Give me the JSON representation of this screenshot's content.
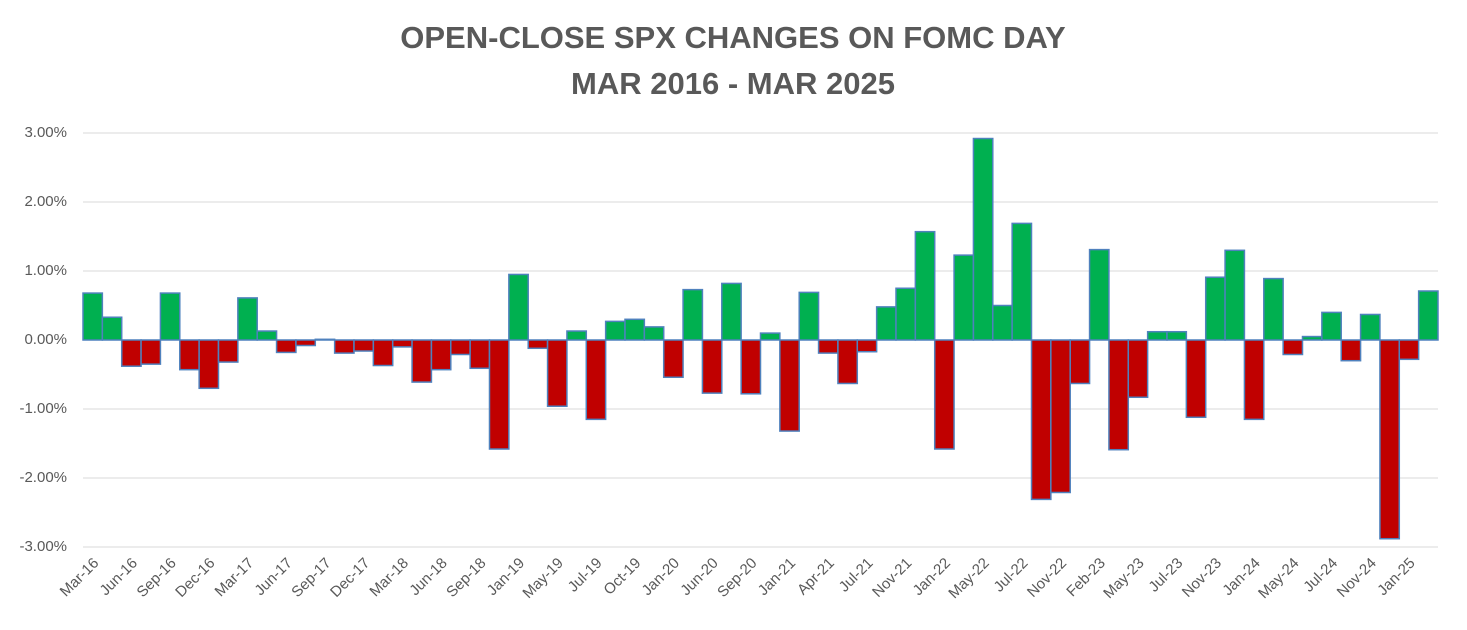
{
  "chart_data": {
    "type": "bar",
    "title": [
      "OPEN-CLOSE SPX CHANGES ON FOMC DAY",
      "MAR 2016 - MAR 2025"
    ],
    "categories": [
      "Mar-16",
      null,
      "Jun-16",
      null,
      "Sep-16",
      null,
      "Dec-16",
      null,
      "Mar-17",
      null,
      "Jun-17",
      null,
      "Sep-17",
      null,
      "Dec-17",
      null,
      "Mar-18",
      null,
      "Jun-18",
      null,
      "Sep-18",
      null,
      "Jan-19",
      null,
      "May-19",
      null,
      "Jul-19",
      null,
      "Oct-19",
      null,
      "Jan-20",
      null,
      "Jun-20",
      null,
      "Sep-20",
      null,
      "Jan-21",
      null,
      "Apr-21",
      null,
      "Jul-21",
      null,
      "Nov-21",
      null,
      "Jan-22",
      null,
      "May-22",
      null,
      "Jul-22",
      null,
      "Nov-22",
      null,
      "Feb-23",
      null,
      "May-23",
      null,
      "Jul-23",
      null,
      "Nov-23",
      null,
      "Jan-24",
      null,
      "May-24",
      null,
      "Jul-24",
      null,
      "Nov-24",
      null,
      "Jan-25",
      null
    ],
    "values": [
      0.68,
      0.33,
      -0.38,
      -0.35,
      0.68,
      -0.43,
      -0.7,
      -0.32,
      0.61,
      0.13,
      -0.18,
      -0.08,
      0.01,
      -0.19,
      -0.16,
      -0.37,
      -0.1,
      -0.61,
      -0.43,
      -0.21,
      -0.41,
      -1.58,
      0.95,
      -0.12,
      -0.96,
      0.13,
      -1.15,
      0.27,
      0.3,
      0.19,
      -0.54,
      0.73,
      -0.77,
      0.82,
      -0.78,
      0.1,
      -1.32,
      0.69,
      -0.19,
      -0.63,
      -0.17,
      0.48,
      0.75,
      1.57,
      -1.58,
      1.23,
      2.92,
      0.5,
      1.69,
      -2.31,
      -2.21,
      -0.63,
      1.31,
      -1.59,
      -0.83,
      0.12,
      0.12,
      -1.12,
      0.91,
      1.3,
      -1.15,
      0.89,
      -0.21,
      0.05,
      0.4,
      -0.3,
      0.37,
      -2.88,
      -0.28,
      0.71
    ],
    "positive_color": "#00b050",
    "negative_color": "#c00000",
    "edge_color": "#4f81bd",
    "ylim": [
      -3,
      3
    ],
    "yticks": [
      {
        "value": -3,
        "label": "-3.00%"
      },
      {
        "value": -2,
        "label": "-2.00%"
      },
      {
        "value": -1,
        "label": "-1.00%"
      },
      {
        "value": 0,
        "label": "0.00%"
      },
      {
        "value": 1,
        "label": "1.00%"
      },
      {
        "value": 2,
        "label": "2.00%"
      },
      {
        "value": 3,
        "label": "3.00%"
      }
    ],
    "grid": true
  }
}
